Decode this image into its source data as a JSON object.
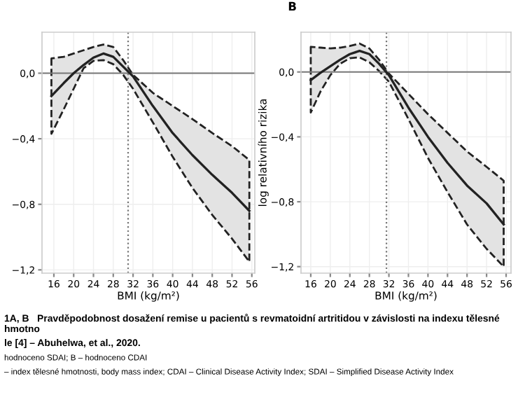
{
  "chart_data": [
    {
      "type": "line",
      "xlabel": "BMI (kg/m²)",
      "x": [
        15.5,
        18,
        20,
        22,
        24,
        26,
        28,
        30,
        32,
        36,
        40,
        44,
        48,
        52,
        55.5
      ],
      "series": [
        {
          "color": "#222222",
          "values": [
            -0.14,
            -0.06,
            0.0,
            0.05,
            0.095,
            0.12,
            0.1,
            0.04,
            -0.02,
            -0.2,
            -0.365,
            -0.5,
            -0.62,
            -0.73,
            -0.84
          ],
          "lower": [
            -0.37,
            -0.22,
            -0.095,
            0.03,
            0.075,
            0.08,
            0.055,
            -0.01,
            -0.095,
            -0.3,
            -0.51,
            -0.7,
            -0.865,
            -1.01,
            -1.15
          ],
          "upper": [
            0.09,
            0.1,
            0.12,
            0.14,
            0.16,
            0.175,
            0.16,
            0.08,
            -0.01,
            -0.12,
            -0.2,
            -0.28,
            -0.365,
            -0.445,
            -0.53
          ]
        }
      ],
      "xlim": [
        13.6,
        56.6
      ],
      "ylim": [
        -1.22,
        0.25
      ],
      "xticks": [
        16,
        20,
        24,
        28,
        32,
        36,
        40,
        44,
        48,
        52,
        56
      ],
      "yticks": [
        {
          "value": 0,
          "label": "0,0"
        },
        {
          "value": -0.4,
          "label": "−0,4"
        },
        {
          "value": -0.8,
          "label": "−0,8"
        },
        {
          "value": -1.2,
          "label": "−1,2"
        }
      ],
      "ref_lines": [
        {
          "axis": "y",
          "value": 0,
          "color": "#777777",
          "line_style": "solid"
        },
        {
          "axis": "x",
          "value": 31,
          "color": "#777777",
          "line_style": "dotted"
        }
      ],
      "grid": true,
      "annotations": [
        "1A, B   Pravděpodobnost dosažení remise u pacientů s revmatoidní artritidou v závislosti na indexu tělesné hmotno",
        "le [4] – Abuhelwa, et al., 2020.",
        "hodnoceno SDAI; B – hodnoceno CDAI",
        "– index tělesné hmotnosti, body mass index; CDAI – Clinical Disease Activity Index; SDAI – Simplified Disease Activity Index"
      ]
    },
    {
      "type": "line",
      "title": "B",
      "xlabel": "BMI (kg/m²)",
      "ylabel": "log relativního rizika",
      "x": [
        16,
        18,
        20,
        22,
        24,
        26,
        28,
        30,
        32,
        36,
        40,
        44,
        48,
        52,
        55.5
      ],
      "series": [
        {
          "color": "#222222",
          "values": [
            -0.05,
            -0.005,
            0.035,
            0.075,
            0.11,
            0.13,
            0.11,
            0.05,
            -0.02,
            -0.22,
            -0.4,
            -0.56,
            -0.7,
            -0.81,
            -0.94
          ],
          "lower": [
            -0.25,
            -0.12,
            -0.02,
            0.05,
            0.085,
            0.09,
            0.06,
            0.005,
            -0.06,
            -0.29,
            -0.53,
            -0.74,
            -0.94,
            -1.09,
            -1.2
          ],
          "upper": [
            0.155,
            0.15,
            0.145,
            0.15,
            0.16,
            0.175,
            0.145,
            0.075,
            -0.01,
            -0.135,
            -0.26,
            -0.375,
            -0.49,
            -0.585,
            -0.67
          ]
        }
      ],
      "xlim": [
        14,
        57
      ],
      "ylim": [
        -1.24,
        0.245
      ],
      "xticks": [
        16,
        20,
        24,
        28,
        32,
        36,
        40,
        44,
        48,
        52,
        56
      ],
      "yticks": [
        {
          "value": 0,
          "label": "0,0"
        },
        {
          "value": -0.4,
          "label": "−0,4"
        },
        {
          "value": -0.8,
          "label": "−0,8"
        },
        {
          "value": -1.2,
          "label": "−1,2"
        }
      ],
      "ref_lines": [
        {
          "axis": "y",
          "value": 0,
          "color": "#777777",
          "line_style": "solid"
        },
        {
          "axis": "x",
          "value": 31.5,
          "color": "#777777",
          "line_style": "dotted"
        }
      ],
      "grid": true
    }
  ]
}
